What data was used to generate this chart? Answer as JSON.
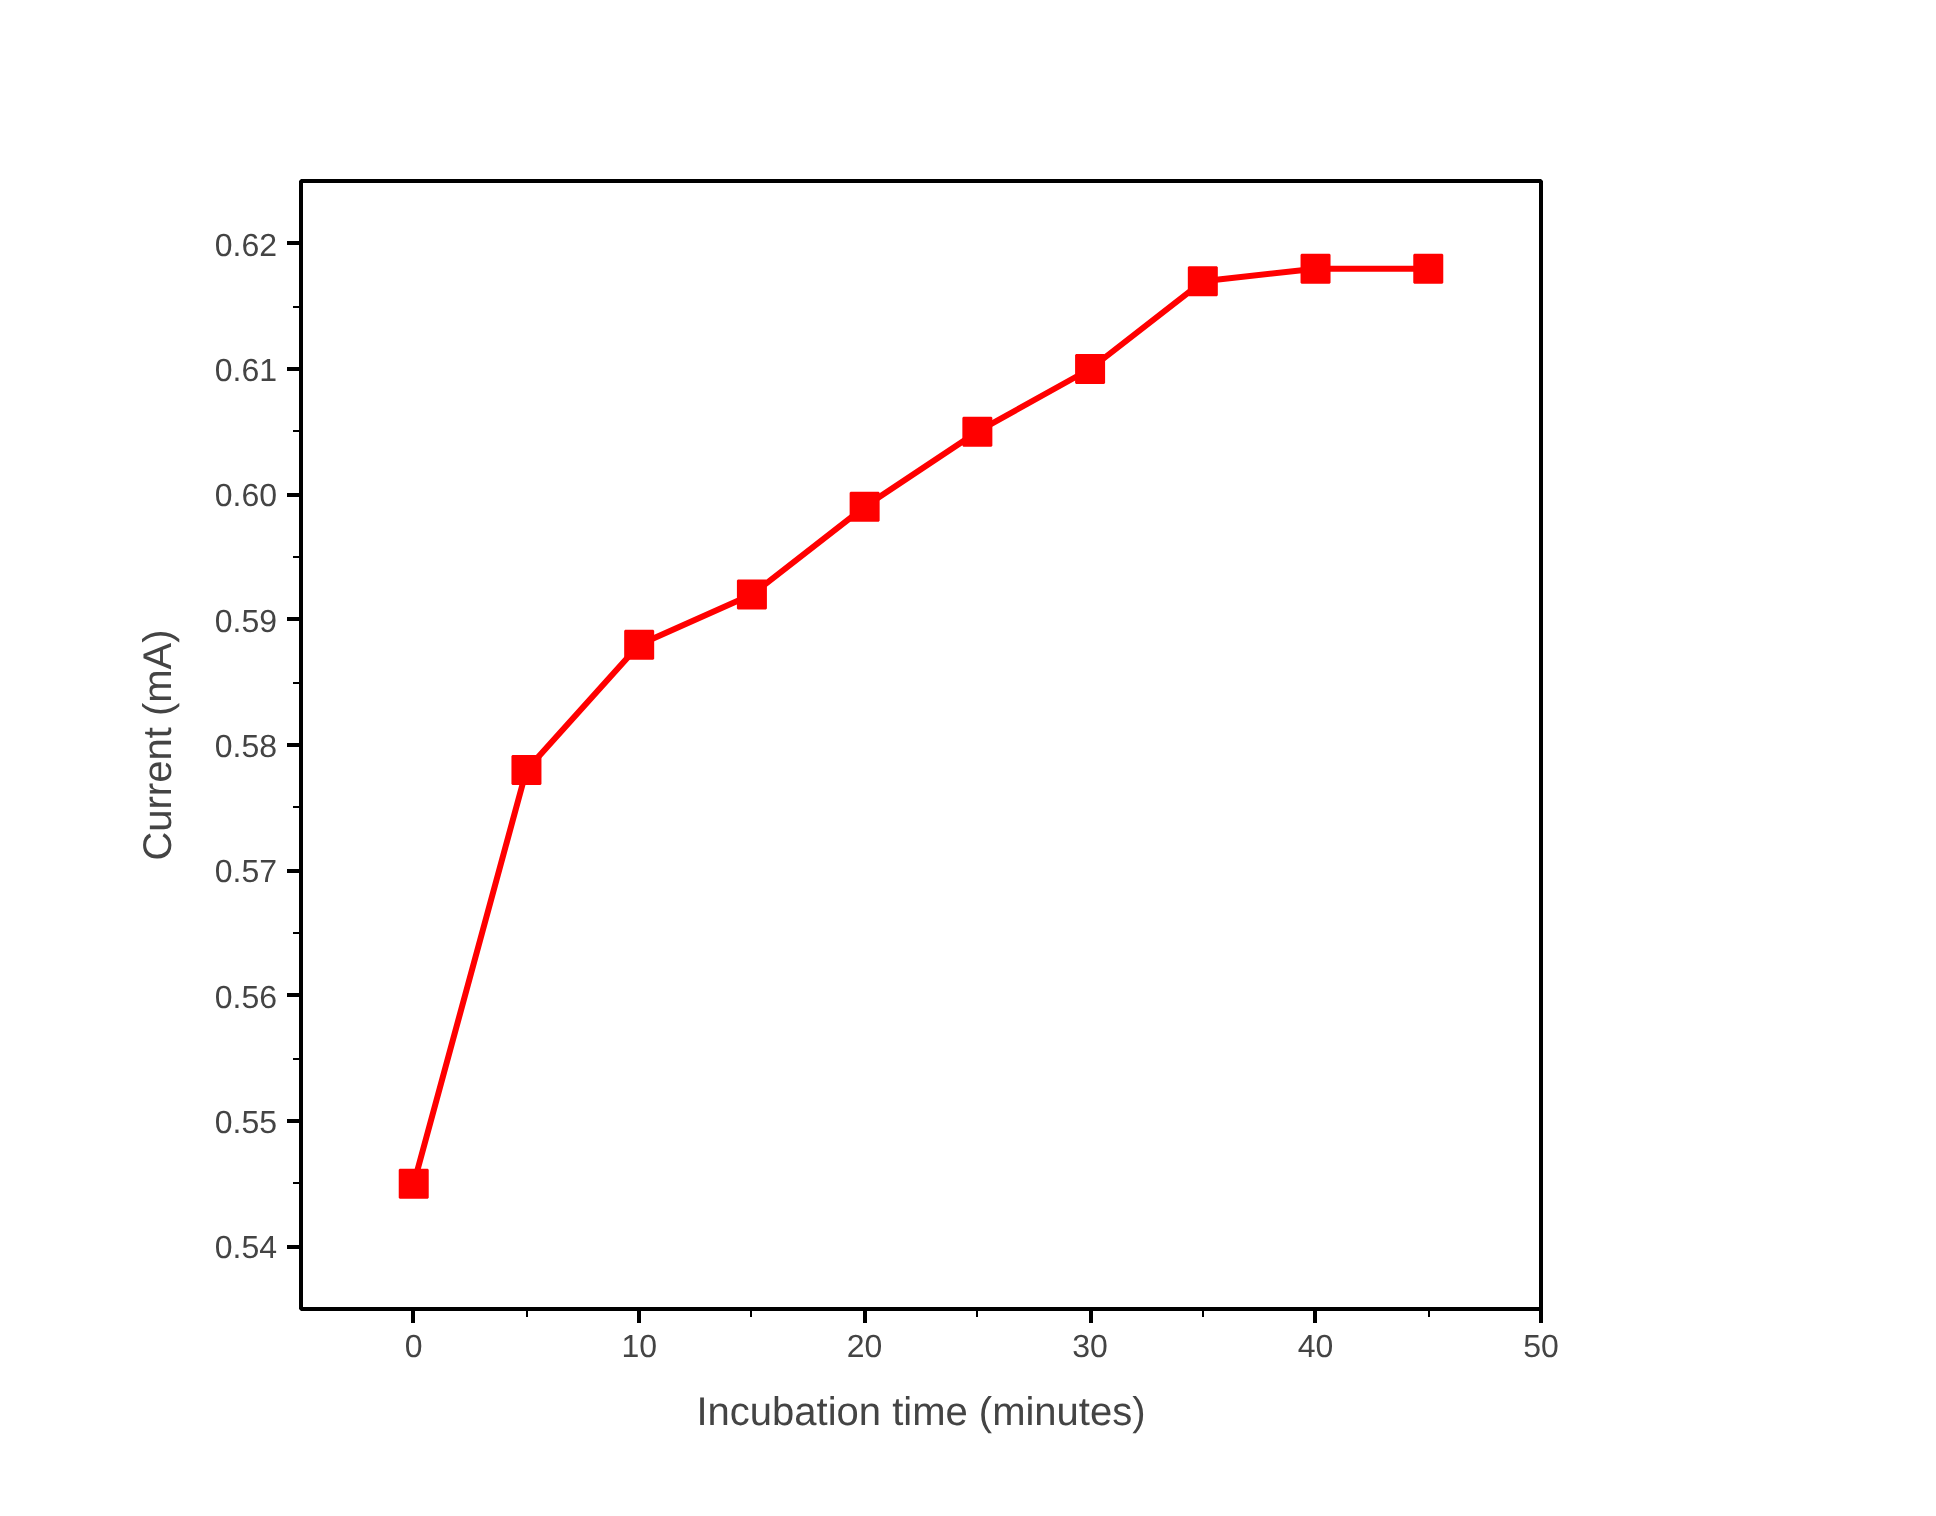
{
  "chart_data": {
    "type": "line",
    "xlabel": "Incubation time (minutes)",
    "ylabel": "Current (mA)",
    "x": [
      0,
      5,
      10,
      15,
      20,
      25,
      30,
      35,
      40,
      45
    ],
    "series": [
      {
        "color": "#ff0000",
        "values": [
          0.545,
          0.578,
          0.588,
          0.592,
          0.599,
          0.605,
          0.61,
          0.617,
          0.618,
          0.618
        ]
      }
    ],
    "xlim": [
      -5,
      50
    ],
    "ylim": [
      0.535,
      0.625
    ],
    "xticks": [
      0,
      10,
      20,
      30,
      40,
      50
    ],
    "yticks": [
      {
        "value": 0.54,
        "label": "0.54"
      },
      {
        "value": 0.55,
        "label": "0.55"
      },
      {
        "value": 0.56,
        "label": "0.56"
      },
      {
        "value": 0.57,
        "label": "0.57"
      },
      {
        "value": 0.58,
        "label": "0.58"
      },
      {
        "value": 0.59,
        "label": "0.59"
      },
      {
        "value": 0.6,
        "label": "0.60"
      },
      {
        "value": 0.61,
        "label": "0.61"
      },
      {
        "value": 0.62,
        "label": "0.62"
      }
    ],
    "marker": "square",
    "line_style": "solid",
    "grid": false
  }
}
